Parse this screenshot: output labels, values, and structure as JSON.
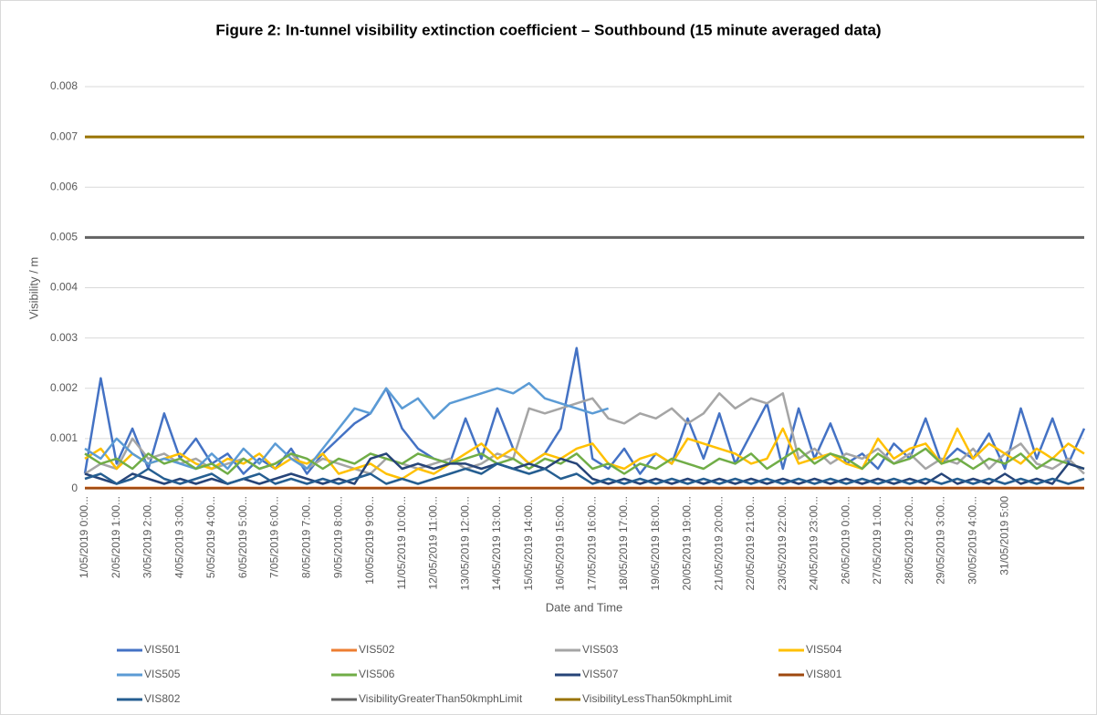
{
  "chart_data": {
    "type": "line",
    "title": "Figure 2: In-tunnel visibility extinction coefficient – Southbound (15 minute averaged data)",
    "x_label": "Date and Time",
    "y_label": "Visibility / m",
    "ylim": [
      0,
      0.008
    ],
    "yticks": [
      0,
      0.001,
      0.002,
      0.003,
      0.004,
      0.005,
      0.006,
      0.007,
      0.008
    ],
    "grid": true,
    "legend": "bottom",
    "categories": [
      "1/05/2019 0:00...",
      null,
      "2/05/2019 1:00...",
      null,
      "3/05/2019 2:00...",
      null,
      "4/05/2019 3:00...",
      null,
      "5/05/2019 4:00...",
      null,
      "6/05/2019 5:00...",
      null,
      "7/05/2019 6:00...",
      null,
      "8/05/2019 7:00...",
      null,
      "9/05/2019 8:00...",
      null,
      "10/05/2019 9:00...",
      null,
      "11/05/2019 10:00...",
      null,
      "12/05/2019 11:00...",
      null,
      "13/05/2019 12:00...",
      null,
      "14/05/2019 13:00...",
      null,
      "15/05/2019 14:00...",
      null,
      "16/05/2019 15:00...",
      null,
      "17/05/2019 16:00...",
      null,
      "18/05/2019 17:00...",
      null,
      "19/05/2019 18:00...",
      null,
      "20/05/2019 19:00...",
      null,
      "21/05/2019 20:00...",
      null,
      "22/05/2019 21:00...",
      null,
      "23/05/2019 22:00...",
      null,
      "24/05/2019 23:00...",
      null,
      "26/05/2019 0:00...",
      null,
      "27/05/2019 1:00...",
      null,
      "28/05/2019 2:00...",
      null,
      "29/05/2019 3:00...",
      null,
      "30/05/2019 4:00...",
      null,
      "31/05/2019 5:00",
      null,
      null,
      null,
      null,
      null
    ],
    "series": [
      {
        "name": "VIS501",
        "color": "#4472c4",
        "values": [
          0.0003,
          0.0022,
          0.0005,
          0.0012,
          0.0004,
          0.0015,
          0.0006,
          0.001,
          0.0005,
          0.0007,
          0.0003,
          0.0006,
          0.0004,
          0.0008,
          0.0003,
          0.0007,
          0.001,
          0.0013,
          0.0015,
          0.002,
          0.0012,
          0.0008,
          0.0006,
          0.0005,
          0.0014,
          0.0006,
          0.0016,
          0.0008,
          0.0005,
          0.0007,
          0.0012,
          0.0028,
          0.0006,
          0.0004,
          0.0008,
          0.0003,
          0.0007,
          0.0005,
          0.0014,
          0.0006,
          0.0015,
          0.0005,
          0.0011,
          0.0017,
          0.0004,
          0.0016,
          0.0006,
          0.0013,
          0.0005,
          0.0007,
          0.0004,
          0.0009,
          0.0006,
          0.0014,
          0.0005,
          0.0008,
          0.0006,
          0.0011,
          0.0004,
          0.0016,
          0.0006,
          0.0014,
          0.0005,
          0.0012
        ]
      },
      {
        "name": "VIS502",
        "color": "#ed7d31",
        "values": [
          2e-05,
          2e-05,
          2e-05,
          2e-05,
          2e-05,
          2e-05,
          2e-05,
          2e-05,
          2e-05,
          2e-05,
          2e-05,
          2e-05,
          2e-05,
          2e-05,
          2e-05,
          2e-05,
          2e-05,
          2e-05,
          2e-05,
          2e-05,
          2e-05,
          2e-05,
          2e-05,
          2e-05,
          2e-05,
          2e-05,
          2e-05,
          2e-05,
          2e-05,
          2e-05,
          2e-05,
          2e-05,
          2e-05,
          2e-05,
          2e-05,
          2e-05,
          2e-05,
          2e-05,
          2e-05,
          2e-05,
          2e-05,
          2e-05,
          2e-05,
          2e-05,
          2e-05,
          2e-05,
          2e-05,
          2e-05,
          2e-05,
          2e-05,
          2e-05,
          2e-05,
          2e-05,
          2e-05,
          2e-05,
          2e-05,
          2e-05,
          2e-05,
          2e-05,
          2e-05,
          2e-05,
          2e-05,
          2e-05,
          2e-05
        ]
      },
      {
        "name": "VIS503",
        "color": "#a5a5a5",
        "values": [
          0.0003,
          0.0005,
          0.0004,
          0.001,
          0.0006,
          0.0007,
          0.0005,
          0.0006,
          0.0004,
          0.0005,
          0.0006,
          0.0004,
          0.0005,
          0.0007,
          0.0004,
          0.0006,
          0.0005,
          0.0004,
          0.0003,
          0.0006,
          0.0005,
          0.0004,
          0.0005,
          0.0006,
          0.0004,
          0.0005,
          0.0007,
          0.0006,
          0.0016,
          0.0015,
          0.0016,
          0.0017,
          0.0018,
          0.0014,
          0.0013,
          0.0015,
          0.0014,
          0.0016,
          0.0013,
          0.0015,
          0.0019,
          0.0016,
          0.0018,
          0.0017,
          0.0019,
          0.0006,
          0.0008,
          0.0005,
          0.0007,
          0.0006,
          0.0008,
          0.0005,
          0.0007,
          0.0004,
          0.0006,
          0.0005,
          0.0008,
          0.0004,
          0.0007,
          0.0009,
          0.0005,
          0.0004,
          0.0006,
          0.0003
        ]
      },
      {
        "name": "VIS504",
        "color": "#ffc000",
        "values": [
          0.0006,
          0.0008,
          0.0004,
          0.0007,
          0.0005,
          0.0006,
          0.0007,
          0.0005,
          0.0004,
          0.0006,
          0.0005,
          0.0007,
          0.0004,
          0.0006,
          0.0005,
          0.0007,
          0.0003,
          0.0004,
          0.0005,
          0.0003,
          0.0002,
          0.0004,
          0.0003,
          0.0005,
          0.0007,
          0.0009,
          0.0006,
          0.0008,
          0.0005,
          0.0007,
          0.0006,
          0.0008,
          0.0009,
          0.0005,
          0.0004,
          0.0006,
          0.0007,
          0.0005,
          0.001,
          0.0009,
          0.0008,
          0.0007,
          0.0005,
          0.0006,
          0.0012,
          0.0005,
          0.0006,
          0.0007,
          0.0005,
          0.0004,
          0.001,
          0.0006,
          0.0008,
          0.0009,
          0.0005,
          0.0012,
          0.0006,
          0.0009,
          0.0007,
          0.0005,
          0.0008,
          0.0006,
          0.0009,
          0.0007
        ]
      },
      {
        "name": "VIS505",
        "color": "#5b9bd5",
        "values": [
          0.0008,
          0.0006,
          0.001,
          0.0007,
          0.0005,
          0.0006,
          0.0005,
          0.0004,
          0.0007,
          0.0004,
          0.0008,
          0.0005,
          0.0009,
          0.0006,
          0.0004,
          0.0008,
          0.0012,
          0.0016,
          0.0015,
          0.002,
          0.0016,
          0.0018,
          0.0014,
          0.0017,
          0.0018,
          0.0019,
          0.002,
          0.0019,
          0.0021,
          0.0018,
          0.0017,
          0.0016,
          0.0015,
          0.0016,
          null,
          null,
          null,
          null,
          null,
          null,
          null,
          null,
          null,
          null,
          null,
          null,
          null,
          null,
          null,
          null,
          null,
          null,
          null,
          null,
          null,
          null,
          null,
          null,
          null,
          null,
          null,
          null,
          null,
          null
        ]
      },
      {
        "name": "VIS506",
        "color": "#70ad47",
        "values": [
          0.0007,
          0.0005,
          0.0006,
          0.0004,
          0.0007,
          0.0005,
          0.0006,
          0.0004,
          0.0005,
          0.0003,
          0.0006,
          0.0004,
          0.0005,
          0.0007,
          0.0006,
          0.0004,
          0.0006,
          0.0005,
          0.0007,
          0.0006,
          0.0005,
          0.0007,
          0.0006,
          0.0005,
          0.0006,
          0.0007,
          0.0005,
          0.0006,
          0.0004,
          0.0006,
          0.0005,
          0.0007,
          0.0004,
          0.0005,
          0.0003,
          0.0005,
          0.0004,
          0.0006,
          0.0005,
          0.0004,
          0.0006,
          0.0005,
          0.0007,
          0.0004,
          0.0006,
          0.0008,
          0.0005,
          0.0007,
          0.0006,
          0.0004,
          0.0007,
          0.0005,
          0.0006,
          0.0008,
          0.0005,
          0.0006,
          0.0004,
          0.0006,
          0.0005,
          0.0007,
          0.0004,
          0.0006,
          0.0005,
          0.0004
        ]
      },
      {
        "name": "VIS507",
        "color": "#264478",
        "values": [
          0.0003,
          0.0002,
          0.0001,
          0.0003,
          0.0002,
          0.0001,
          0.0002,
          0.0001,
          0.0002,
          0.0001,
          0.0002,
          0.0001,
          0.0002,
          0.0003,
          0.0002,
          0.0001,
          0.0002,
          0.0001,
          0.0006,
          0.0007,
          0.0004,
          0.0005,
          0.0004,
          0.0005,
          0.0005,
          0.0004,
          0.0005,
          0.0004,
          0.0005,
          0.0004,
          0.0006,
          0.0005,
          0.0002,
          0.0001,
          0.0002,
          0.0001,
          0.0002,
          0.0001,
          0.0002,
          0.0001,
          0.0002,
          0.0001,
          0.0002,
          0.0001,
          0.0002,
          0.0001,
          0.0002,
          0.0001,
          0.0002,
          0.0001,
          0.0002,
          0.0001,
          0.0002,
          0.0001,
          0.0003,
          0.0001,
          0.0002,
          0.0001,
          0.0003,
          0.0001,
          0.0002,
          0.0001,
          0.0005,
          0.0004
        ]
      },
      {
        "name": "VIS801",
        "color": "#9e480e",
        "values": [
          1e-05,
          1e-05,
          1e-05,
          1e-05,
          1e-05,
          1e-05,
          1e-05,
          1e-05,
          1e-05,
          1e-05,
          1e-05,
          1e-05,
          1e-05,
          1e-05,
          1e-05,
          1e-05,
          1e-05,
          1e-05,
          1e-05,
          1e-05,
          1e-05,
          1e-05,
          1e-05,
          1e-05,
          1e-05,
          1e-05,
          1e-05,
          1e-05,
          1e-05,
          1e-05,
          1e-05,
          1e-05,
          1e-05,
          1e-05,
          1e-05,
          1e-05,
          1e-05,
          1e-05,
          1e-05,
          1e-05,
          1e-05,
          1e-05,
          1e-05,
          1e-05,
          1e-05,
          1e-05,
          1e-05,
          1e-05,
          1e-05,
          1e-05,
          1e-05,
          1e-05,
          1e-05,
          1e-05,
          1e-05,
          1e-05,
          1e-05,
          1e-05,
          1e-05,
          1e-05,
          1e-05,
          1e-05,
          1e-05,
          1e-05
        ]
      },
      {
        "name": "VIS802",
        "color": "#255e91",
        "values": [
          0.0002,
          0.0003,
          0.0001,
          0.0002,
          0.0004,
          0.0002,
          0.0001,
          0.0002,
          0.0003,
          0.0001,
          0.0002,
          0.0003,
          0.0001,
          0.0002,
          0.0001,
          0.0002,
          0.0001,
          0.0002,
          0.0003,
          0.0001,
          0.0002,
          0.0001,
          0.0002,
          0.0003,
          0.0004,
          0.0003,
          0.0005,
          0.0004,
          0.0003,
          0.0004,
          0.0002,
          0.0003,
          0.0001,
          0.0002,
          0.0001,
          0.0002,
          0.0001,
          0.0002,
          0.0001,
          0.0002,
          0.0001,
          0.0002,
          0.0001,
          0.0002,
          0.0001,
          0.0002,
          0.0001,
          0.0002,
          0.0001,
          0.0002,
          0.0001,
          0.0002,
          0.0001,
          0.0002,
          0.0001,
          0.0002,
          0.0001,
          0.0002,
          0.0001,
          0.0002,
          0.0001,
          0.0002,
          0.0001,
          0.0002
        ]
      },
      {
        "name": "VisibilityGreaterThan50kmphLimit",
        "color": "#636363",
        "values": [
          0.005,
          0.005,
          0.005,
          0.005,
          0.005,
          0.005,
          0.005,
          0.005,
          0.005,
          0.005,
          0.005,
          0.005,
          0.005,
          0.005,
          0.005,
          0.005,
          0.005,
          0.005,
          0.005,
          0.005,
          0.005,
          0.005,
          0.005,
          0.005,
          0.005,
          0.005,
          0.005,
          0.005,
          0.005,
          0.005,
          0.005,
          0.005,
          0.005,
          0.005,
          0.005,
          0.005,
          0.005,
          0.005,
          0.005,
          0.005,
          0.005,
          0.005,
          0.005,
          0.005,
          0.005,
          0.005,
          0.005,
          0.005,
          0.005,
          0.005,
          0.005,
          0.005,
          0.005,
          0.005,
          0.005,
          0.005,
          0.005,
          0.005,
          0.005,
          0.005,
          0.005,
          0.005,
          0.005,
          0.005
        ]
      },
      {
        "name": "VisibilityLessThan50kmphLimit",
        "color": "#997300",
        "values": [
          0.007,
          0.007,
          0.007,
          0.007,
          0.007,
          0.007,
          0.007,
          0.007,
          0.007,
          0.007,
          0.007,
          0.007,
          0.007,
          0.007,
          0.007,
          0.007,
          0.007,
          0.007,
          0.007,
          0.007,
          0.007,
          0.007,
          0.007,
          0.007,
          0.007,
          0.007,
          0.007,
          0.007,
          0.007,
          0.007,
          0.007,
          0.007,
          0.007,
          0.007,
          0.007,
          0.007,
          0.007,
          0.007,
          0.007,
          0.007,
          0.007,
          0.007,
          0.007,
          0.007,
          0.007,
          0.007,
          0.007,
          0.007,
          0.007,
          0.007,
          0.007,
          0.007,
          0.007,
          0.007,
          0.007,
          0.007,
          0.007,
          0.007,
          0.007,
          0.007,
          0.007,
          0.007,
          0.007,
          0.007
        ]
      }
    ]
  }
}
